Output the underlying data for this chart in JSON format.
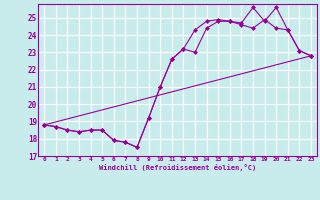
{
  "xlabel": "Windchill (Refroidissement éolien,°C)",
  "background_color": "#c8ecec",
  "grid_color": "#ffffff",
  "line_color": "#990099",
  "xlim": [
    -0.5,
    23.5
  ],
  "ylim": [
    17,
    25.8
  ],
  "yticks": [
    17,
    18,
    19,
    20,
    21,
    22,
    23,
    24,
    25
  ],
  "xticks": [
    0,
    1,
    2,
    3,
    4,
    5,
    6,
    7,
    8,
    9,
    10,
    11,
    12,
    13,
    14,
    15,
    16,
    17,
    18,
    19,
    20,
    21,
    22,
    23
  ],
  "line1_x": [
    0,
    1,
    2,
    3,
    4,
    5,
    6,
    7,
    8,
    9,
    10,
    11,
    12,
    13,
    14,
    15,
    16,
    17,
    18,
    19,
    20,
    21,
    22,
    23
  ],
  "line1_y": [
    18.8,
    18.7,
    18.5,
    18.4,
    18.5,
    18.5,
    17.9,
    17.8,
    17.5,
    19.2,
    21.0,
    22.6,
    23.2,
    23.0,
    24.4,
    24.8,
    24.8,
    24.7,
    25.6,
    24.8,
    25.6,
    24.3,
    23.1,
    22.8
  ],
  "line2_x": [
    0,
    1,
    2,
    3,
    4,
    5,
    6,
    7,
    8,
    9,
    10,
    11,
    12,
    13,
    14,
    15,
    16,
    17,
    18,
    19,
    20,
    21,
    22,
    23
  ],
  "line2_y": [
    18.8,
    18.7,
    18.5,
    18.4,
    18.5,
    18.5,
    17.9,
    17.8,
    17.5,
    19.2,
    21.0,
    22.6,
    23.2,
    24.3,
    24.8,
    24.9,
    24.8,
    24.6,
    24.4,
    24.9,
    24.4,
    24.3,
    23.1,
    22.8
  ],
  "line3_x": [
    0,
    23
  ],
  "line3_y": [
    18.8,
    22.8
  ]
}
